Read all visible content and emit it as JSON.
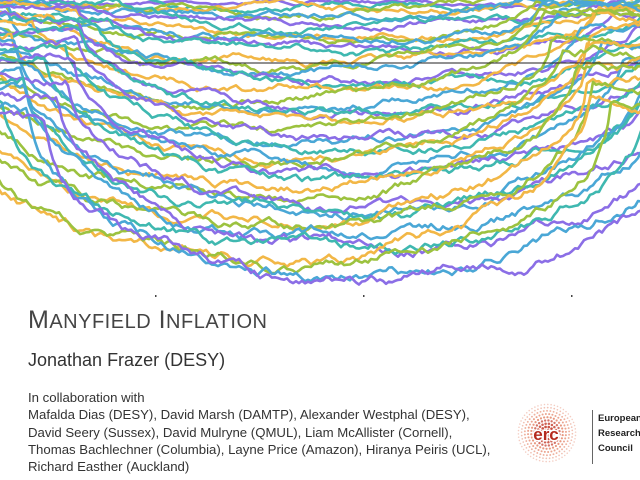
{
  "title": {
    "first_cap": "M",
    "first_rest": "ANYFIELD",
    "second_cap": "I",
    "second_rest": "NFLATION"
  },
  "presenter": "Jonathan Frazer (DESY)",
  "collaboration": {
    "intro": "In collaboration with",
    "lines": [
      "Mafalda Dias (DESY), David Marsh (DAMTP), Alexander Westphal (DESY),",
      "David Seery (Sussex), David Mulryne (QMUL), Liam McAllister (Cornell),",
      "Thomas Bachlechner (Columbia), Layne Price (Amazon), Hiranya Peiris (UCL),",
      "Richard Easther (Auckland)"
    ]
  },
  "logo": {
    "mark": "erc",
    "lines": [
      "European",
      "Research",
      "Council"
    ]
  },
  "palette": [
    "#8b6ee6",
    "#3fb8b0",
    "#f2b746",
    "#9cc23f",
    "#4aa7d6"
  ]
}
